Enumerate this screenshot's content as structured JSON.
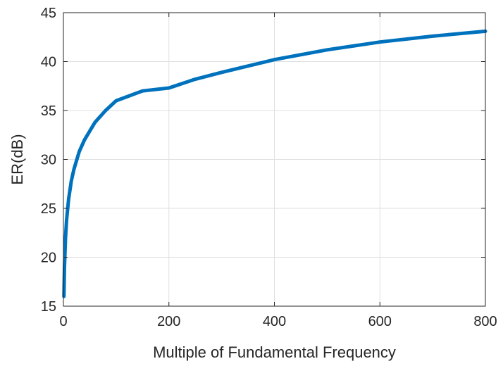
{
  "chart_data": {
    "type": "line",
    "title": "",
    "xlabel": "Multiple of Fundamental Frequency",
    "ylabel": "ER(dB)",
    "xlim": [
      0,
      800
    ],
    "ylim": [
      15,
      45
    ],
    "xticks": [
      0,
      200,
      400,
      600,
      800
    ],
    "yticks": [
      15,
      20,
      25,
      30,
      35,
      40,
      45
    ],
    "xtick_labels": [
      "0",
      "200",
      "400",
      "600",
      "800"
    ],
    "ytick_labels": [
      "15",
      "20",
      "25",
      "30",
      "35",
      "40",
      "45"
    ],
    "grid": true,
    "legend": "none",
    "series": [
      {
        "color": "#0072BD",
        "x": [
          1,
          2,
          4,
          6,
          10,
          15,
          20,
          30,
          40,
          60,
          80,
          100,
          150,
          200,
          250,
          300,
          400,
          500,
          600,
          700,
          800
        ],
        "y": [
          16.0,
          19.0,
          22.0,
          23.8,
          26.0,
          27.8,
          29.0,
          30.8,
          32.0,
          33.8,
          35.0,
          36.0,
          37.0,
          37.3,
          38.2,
          38.9,
          40.2,
          41.2,
          42.0,
          42.6,
          43.1
        ]
      }
    ]
  }
}
